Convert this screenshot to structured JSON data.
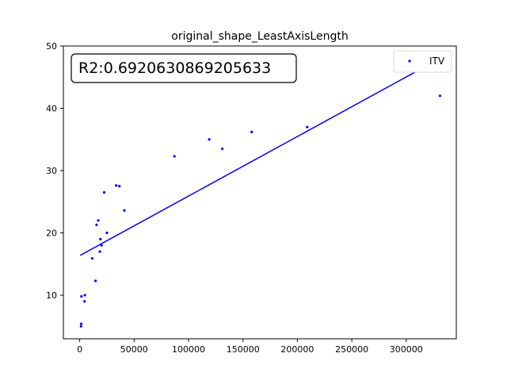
{
  "chart_data": {
    "type": "scatter",
    "title": "original_shape_LeastAxisLength",
    "xlabel": "",
    "ylabel": "",
    "xlim": [
      -15000,
      346000
    ],
    "ylim": [
      3,
      50
    ],
    "xticks": [
      0,
      50000,
      100000,
      150000,
      200000,
      250000,
      300000
    ],
    "yticks": [
      10,
      20,
      30,
      40,
      50
    ],
    "grid": false,
    "legend_position": "top-right",
    "annotation": "R2:0.6920630869205633",
    "series": [
      {
        "name": "ITV",
        "color": "#0000ff",
        "marker": "point",
        "points": [
          [
            1200,
            5.0
          ],
          [
            1400,
            5.4
          ],
          [
            1600,
            9.8
          ],
          [
            4500,
            9.0
          ],
          [
            4800,
            10.0
          ],
          [
            11500,
            15.9
          ],
          [
            14500,
            12.3
          ],
          [
            15500,
            21.3
          ],
          [
            17000,
            22.0
          ],
          [
            18500,
            17.0
          ],
          [
            19000,
            19.0
          ],
          [
            20000,
            18.0
          ],
          [
            22500,
            26.5
          ],
          [
            25000,
            20.0
          ],
          [
            33500,
            27.6
          ],
          [
            36500,
            27.5
          ],
          [
            41000,
            23.6
          ],
          [
            87000,
            32.3
          ],
          [
            119000,
            35.0
          ],
          [
            131000,
            33.5
          ],
          [
            158000,
            36.2
          ],
          [
            209000,
            37.0
          ],
          [
            331000,
            42.0
          ]
        ]
      }
    ],
    "fit_line": {
      "color": "#0000ff",
      "x": [
        500,
        331000
      ],
      "y": [
        16.4,
        48.0
      ]
    }
  }
}
